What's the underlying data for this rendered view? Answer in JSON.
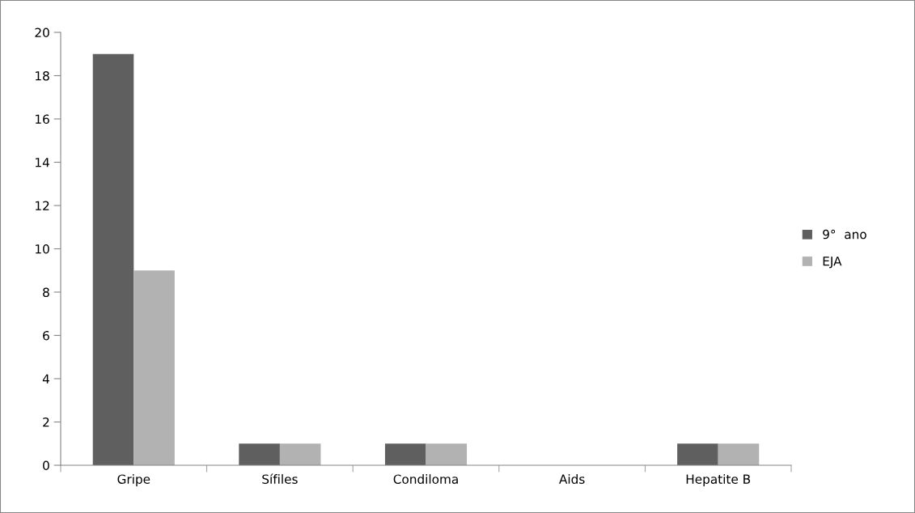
{
  "chart_data": {
    "type": "bar",
    "categories": [
      "Gripe",
      "Sífiles",
      "Condiloma",
      "Aids",
      "Hepatite B"
    ],
    "series": [
      {
        "name": "9°  ano",
        "color": "#5f5f5f",
        "values": [
          19,
          1,
          1,
          0,
          1
        ]
      },
      {
        "name": "EJA",
        "color": "#b2b2b2",
        "values": [
          9,
          1,
          1,
          0,
          1
        ]
      }
    ],
    "ylim": [
      0,
      20
    ],
    "yticks": [
      0,
      2,
      4,
      6,
      8,
      10,
      12,
      14,
      16,
      18,
      20
    ],
    "grid": false,
    "legend": "right"
  }
}
